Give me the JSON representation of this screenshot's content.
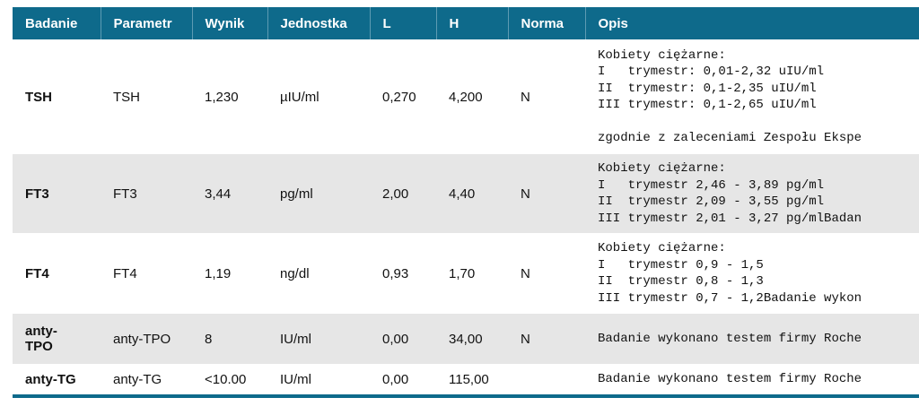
{
  "table": {
    "header": [
      "Badanie",
      "Parametr",
      "Wynik",
      "Jednostka",
      "L",
      "H",
      "Norma",
      "Opis"
    ],
    "rows": [
      {
        "badanie": "TSH",
        "parametr": "TSH",
        "wynik": "1,230",
        "jednostka": "µIU/ml",
        "l": "0,270",
        "h": "4,200",
        "norma": "N",
        "opis": [
          "Kobiety ciężarne:",
          "I   trymestr: 0,01-2,32 uIU/ml",
          "II  trymestr: 0,1-2,35 uIU/ml",
          "III trymestr: 0,1-2,65 uIU/ml",
          "zgodnie z zaleceniami Zespołu Ekspe"
        ]
      },
      {
        "badanie": "FT3",
        "parametr": "FT3",
        "wynik": "3,44",
        "jednostka": "pg/ml",
        "l": "2,00",
        "h": "4,40",
        "norma": "N",
        "opis": [
          "Kobiety ciężarne:",
          "I   trymestr 2,46 - 3,89 pg/ml",
          "II  trymestr 2,09 - 3,55 pg/ml",
          "III trymestr 2,01 - 3,27 pg/mlBadan"
        ]
      },
      {
        "badanie": "FT4",
        "parametr": "FT4",
        "wynik": "1,19",
        "jednostka": "ng/dl",
        "l": "0,93",
        "h": "1,70",
        "norma": "N",
        "opis": [
          "Kobiety ciężarne:",
          "I   trymestr 0,9 - 1,5",
          "II  trymestr 0,8 - 1,3",
          "III trymestr 0,7 - 1,2Badanie wykon"
        ]
      },
      {
        "badanie": "anty-TPO",
        "parametr": "anty-TPO",
        "wynik": "8",
        "jednostka": "IU/ml",
        "l": "0,00",
        "h": "34,00",
        "norma": "N",
        "opis": [
          "Badanie wykonano testem firmy Roche"
        ]
      },
      {
        "badanie": "anty-TG",
        "parametr": "anty-TG",
        "wynik": "<10.00",
        "jednostka": "IU/ml",
        "l": "0,00",
        "h": "115,00",
        "opis": [
          "Badanie wykonano testem firmy Roche"
        ]
      }
    ]
  }
}
